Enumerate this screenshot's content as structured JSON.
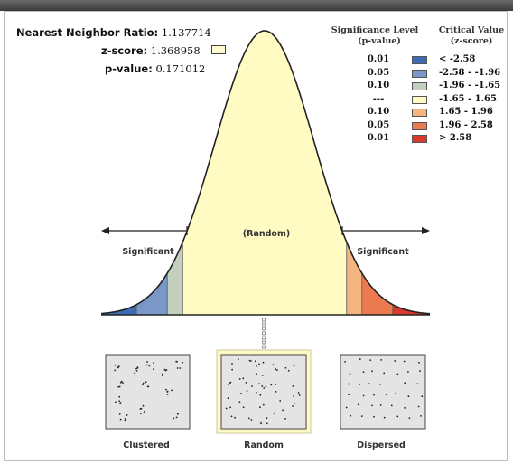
{
  "stats": {
    "ratio_label": "Nearest Neighbor Ratio:",
    "ratio_value": "1.137714",
    "z_label": "z-score:",
    "z_value": "1.368958",
    "p_label": "p-value:",
    "p_value": "0.171012"
  },
  "legend": {
    "sig_header_1": "Significance Level",
    "sig_header_2": "(p-value)",
    "crit_header_1": "Critical Value",
    "crit_header_2": "(z-score)",
    "rows": [
      {
        "p": "0.01",
        "z": "< -2.58",
        "color": "#3d6cb5"
      },
      {
        "p": "0.05",
        "z": "-2.58 - -1.96",
        "color": "#7a97c8"
      },
      {
        "p": "0.10",
        "z": "-1.96 - -1.65",
        "color": "#c3d0bd"
      },
      {
        "p": "---",
        "z": "-1.65 - 1.65",
        "color": "#fffbc2"
      },
      {
        "p": "0.10",
        "z": "1.65 - 1.96",
        "color": "#f5b57f"
      },
      {
        "p": "0.05",
        "z": "1.96 - 2.58",
        "color": "#ec7a50"
      },
      {
        "p": "0.01",
        "z": "> 2.58",
        "color": "#d83a2e"
      }
    ]
  },
  "curve": {
    "random_label": "(Random)",
    "left_sig_label": "Significant",
    "right_sig_label": "Significant",
    "observed_z": 1.368958
  },
  "patterns": {
    "clustered": "Clustered",
    "random": "Random",
    "dispersed": "Dispersed"
  }
}
